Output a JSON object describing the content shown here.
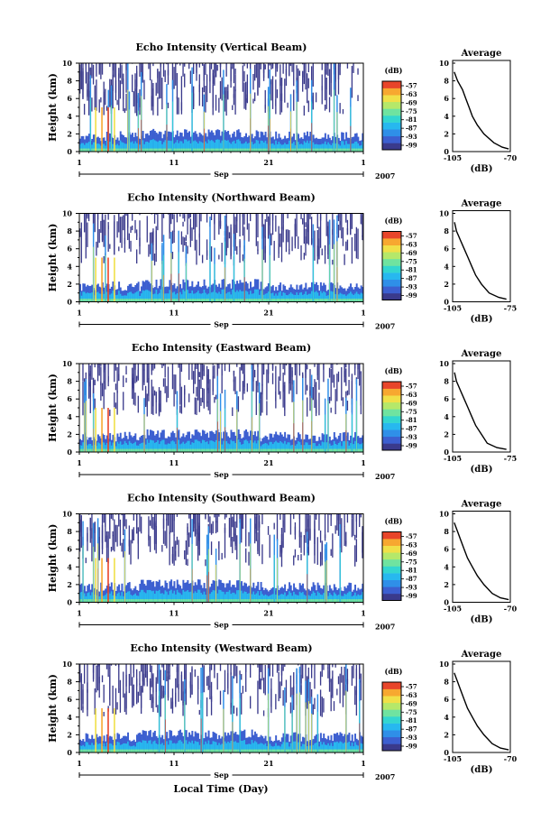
{
  "figure": {
    "common": {
      "ylabel": "Height (km)",
      "y_ticks": [
        "0",
        "2",
        "4",
        "6",
        "8",
        "10"
      ],
      "ylim": [
        0,
        10
      ],
      "x_ticks": [
        "1",
        "11",
        "21",
        "1"
      ],
      "month_label": "Sep",
      "year_label": "2007",
      "colorbar_unit": "(dB)",
      "colorbar_ticks": [
        "-57",
        "-63",
        "-69",
        "-75",
        "-81",
        "-87",
        "-93",
        "-99"
      ],
      "avg_title": "Average",
      "avg_xlabel": "(dB)"
    },
    "xlabel": "Local Time (Day)"
  },
  "chart_data": [
    {
      "type": "heatmap",
      "title": "Echo Intensity (Vertical Beam)",
      "ylabel": "Height (km)",
      "ylim": [
        0,
        10
      ],
      "color_scale": [
        -99,
        -57
      ],
      "avg_xticks": [
        "-105",
        "-70"
      ],
      "avg_xlim": [
        -105,
        -70
      ],
      "avg_profile": {
        "x": [
          -104,
          -102,
          -99,
          -97,
          -95,
          -93,
          -90,
          -86,
          -80,
          -75,
          -71
        ],
        "y": [
          9,
          8,
          7,
          6,
          5,
          4,
          3,
          2,
          1,
          0.5,
          0.3
        ]
      }
    },
    {
      "type": "heatmap",
      "title": "Echo Intensity (Northward Beam)",
      "ylabel": "Height (km)",
      "ylim": [
        0,
        10
      ],
      "color_scale": [
        -99,
        -57
      ],
      "avg_xticks": [
        "-105",
        "-75"
      ],
      "avg_xlim": [
        -105,
        -75
      ],
      "avg_profile": {
        "x": [
          -104,
          -103,
          -101,
          -99,
          -97,
          -95,
          -93,
          -90,
          -86,
          -81,
          -77
        ],
        "y": [
          9,
          8,
          7,
          6,
          5,
          4,
          3,
          2,
          1,
          0.5,
          0.3
        ]
      }
    },
    {
      "type": "heatmap",
      "title": "Echo Intensity (Eastward Beam)",
      "ylabel": "Height (km)",
      "ylim": [
        0,
        10
      ],
      "color_scale": [
        -99,
        -57
      ],
      "avg_xticks": [
        "-105",
        "-75"
      ],
      "avg_xlim": [
        -105,
        -75
      ],
      "avg_profile": {
        "x": [
          -104,
          -103,
          -101,
          -99,
          -97,
          -95,
          -93,
          -90,
          -87,
          -82,
          -77
        ],
        "y": [
          9,
          8,
          7,
          6,
          5,
          4,
          3,
          2,
          1,
          0.5,
          0.3
        ]
      }
    },
    {
      "type": "heatmap",
      "title": "Echo Intensity (Southward Beam)",
      "ylabel": "Height (km)",
      "ylim": [
        0,
        10
      ],
      "color_scale": [
        -99,
        -57
      ],
      "avg_xticks": [
        "-105",
        "-70"
      ],
      "avg_xlim": [
        -105,
        -70
      ],
      "avg_profile": {
        "x": [
          -104,
          -102,
          -100,
          -98,
          -96,
          -93,
          -90,
          -86,
          -81,
          -76,
          -71
        ],
        "y": [
          9,
          8,
          7,
          6,
          5,
          4,
          3,
          2,
          1,
          0.5,
          0.3
        ]
      }
    },
    {
      "type": "heatmap",
      "title": "Echo Intensity (Westward Beam)",
      "ylabel": "Height (km)",
      "ylim": [
        0,
        10
      ],
      "color_scale": [
        -99,
        -57
      ],
      "avg_xticks": [
        "-105",
        "-70"
      ],
      "avg_xlim": [
        -105,
        -70
      ],
      "avg_profile": {
        "x": [
          -104,
          -102,
          -100,
          -98,
          -96,
          -93,
          -90,
          -86,
          -81,
          -76,
          -71
        ],
        "y": [
          9,
          8,
          7,
          6,
          5,
          4,
          3,
          2,
          1,
          0.5,
          0.3
        ]
      }
    }
  ]
}
